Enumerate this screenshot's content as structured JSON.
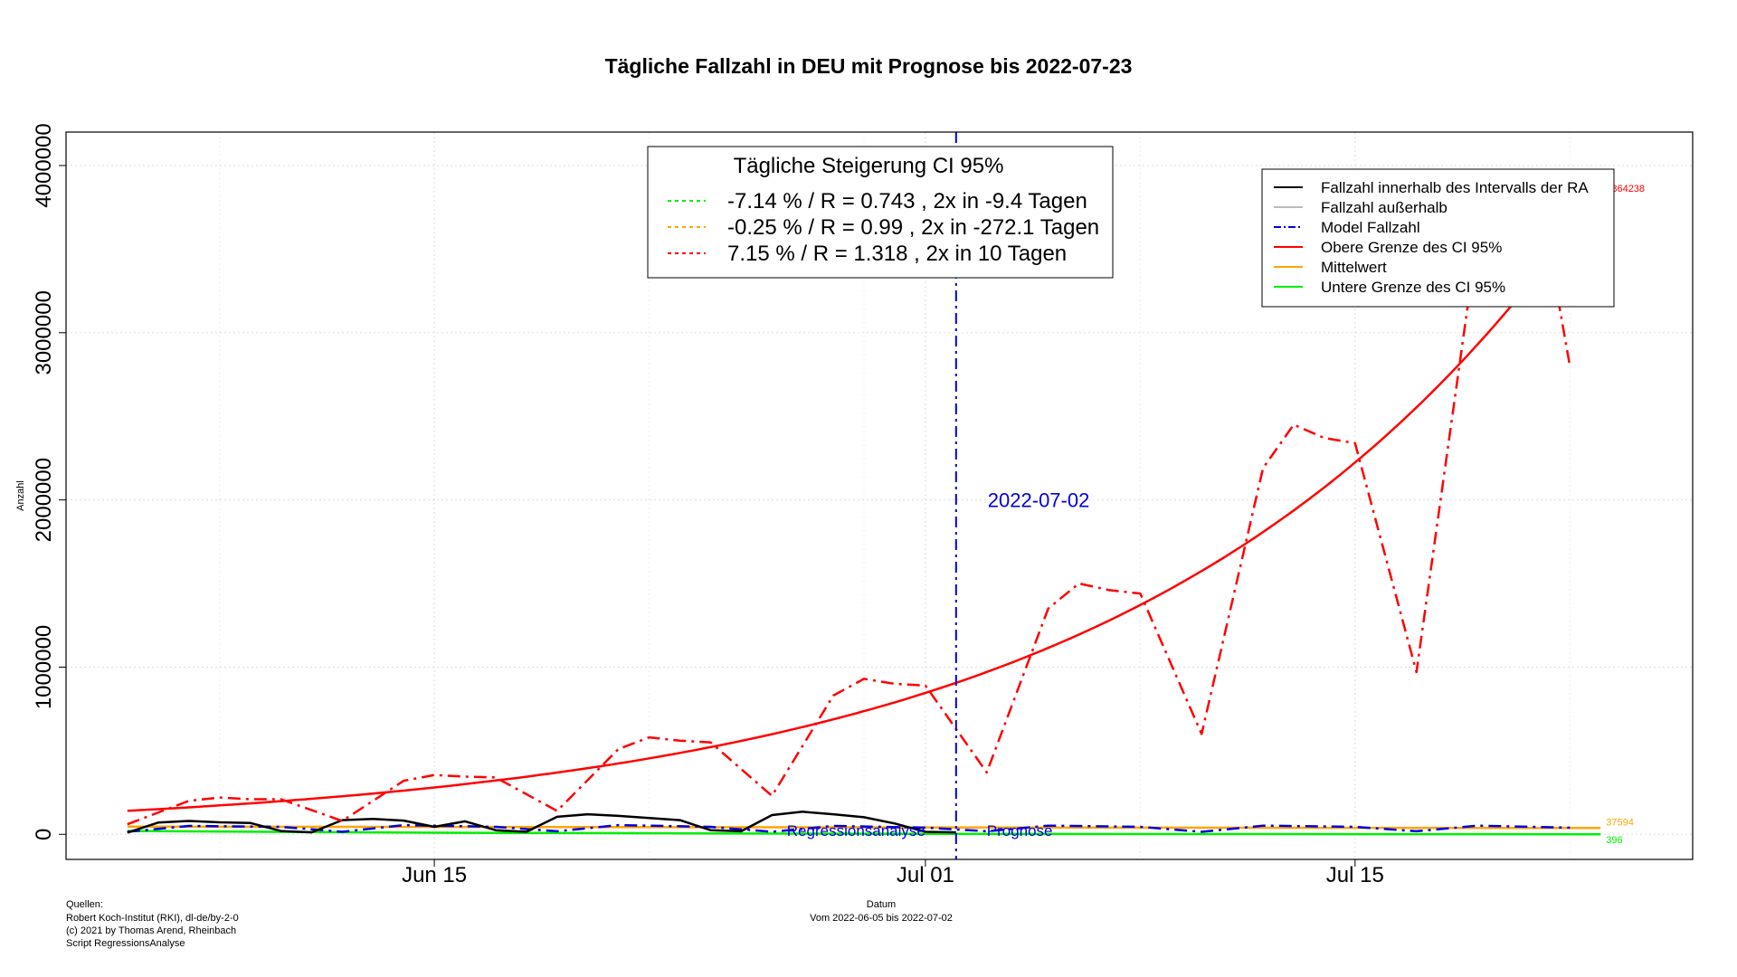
{
  "chart_data": {
    "type": "line",
    "title": "Tägliche Fallzahl in DEU mit Prognose bis 2022-07-23",
    "xlabel": "Datum",
    "xlabel_sub": "Vom 2022-06-05 bis 2022-07-02",
    "ylabel": "Anzahl",
    "ylim": [
      -150000,
      4200000
    ],
    "xlim": [
      "2022-06-03",
      "2022-07-26"
    ],
    "grid": true,
    "y_ticks": [
      0,
      1000000,
      2000000,
      3000000,
      4000000
    ],
    "y_tick_labels": [
      "0",
      "1000000",
      "2000000",
      "3000000",
      "4000000"
    ],
    "x_ticks": [
      {
        "date": "2022-06-15",
        "label": "Jun 15"
      },
      {
        "date": "2022-07-01",
        "label": "Jul 01"
      },
      {
        "date": "2022-07-15",
        "label": "Jul 15"
      }
    ],
    "divider": {
      "date": "2022-07-02",
      "label": "2022-07-02",
      "color": "#0000dd",
      "label_y": 2000000
    },
    "region_labels": [
      {
        "text": "Regressionsanalyse",
        "date": "2022-07-01",
        "anchor": "end",
        "color": "#0000dd"
      },
      {
        "text": "Prognose",
        "date": "2022-07-03",
        "anchor": "start",
        "color": "#0000dd"
      }
    ],
    "ci_box": {
      "title": "Tägliche Steigerung CI  95%",
      "entries": [
        {
          "text": "-7.14 % / R = 0.743 , 2x in -9.4 Tagen",
          "color": "#00ee00"
        },
        {
          "text": "-0.25 % / R = 0.99 , 2x in -272.1 Tagen",
          "color": "#ffa500"
        },
        {
          "text": "7.15 % / R = 1.318 , 2x in 10 Tagen",
          "color": "#ff0000"
        }
      ]
    },
    "legend": {
      "placement": "top-right",
      "entries": [
        {
          "text": "Fallzahl innerhalb des Intervalls der RA",
          "color": "#000000",
          "dash": "solid"
        },
        {
          "text": "Fallzahl außerhalb",
          "color": "#bbbbbb",
          "dash": "solid"
        },
        {
          "text": "Model Fallzahl",
          "color": "#0000dd",
          "dash": "dotdash"
        },
        {
          "text": "Obere Grenze des CI 95%",
          "color": "#ff0000",
          "dash": "solid"
        },
        {
          "text": "Mittelwert",
          "color": "#ffa500",
          "dash": "solid"
        },
        {
          "text": "Untere Grenze des CI 95%",
          "color": "#00ee00",
          "dash": "solid"
        }
      ]
    },
    "end_labels": [
      {
        "text": "3864238",
        "value": 3864238,
        "color": "#ff0000"
      },
      {
        "text": "37594",
        "value": 37594,
        "color": "#ffa500"
      },
      {
        "text": "396",
        "value": 396,
        "color": "#00ee00"
      }
    ],
    "series": [
      {
        "name": "Fallzahl innerhalb des Intervalls der RA",
        "color": "#000000",
        "dash": "solid",
        "width": 2.5,
        "x": [
          "2022-06-05",
          "2022-06-06",
          "2022-06-07",
          "2022-06-08",
          "2022-06-09",
          "2022-06-10",
          "2022-06-11",
          "2022-06-12",
          "2022-06-13",
          "2022-06-14",
          "2022-06-15",
          "2022-06-16",
          "2022-06-17",
          "2022-06-18",
          "2022-06-19",
          "2022-06-20",
          "2022-06-21",
          "2022-06-22",
          "2022-06-23",
          "2022-06-24",
          "2022-06-25",
          "2022-06-26",
          "2022-06-27",
          "2022-06-28",
          "2022-06-29",
          "2022-06-30",
          "2022-07-01",
          "2022-07-02"
        ],
        "y": [
          10000,
          70000,
          80000,
          72000,
          68000,
          20000,
          12000,
          85000,
          92000,
          82000,
          45000,
          78000,
          25000,
          15000,
          105000,
          120000,
          110000,
          98000,
          85000,
          25000,
          18000,
          115000,
          135000,
          120000,
          102000,
          65000,
          15000,
          12000
        ]
      },
      {
        "name": "Model Fallzahl",
        "color": "#0000dd",
        "dash": "dotdash",
        "width": 2.5,
        "x": [
          "2022-06-05",
          "2022-06-07",
          "2022-06-10",
          "2022-06-12",
          "2022-06-14",
          "2022-06-17",
          "2022-06-19",
          "2022-06-21",
          "2022-06-24",
          "2022-06-26",
          "2022-06-28",
          "2022-07-01",
          "2022-07-03",
          "2022-07-05",
          "2022-07-08",
          "2022-07-10",
          "2022-07-12",
          "2022-07-15",
          "2022-07-17",
          "2022-07-19",
          "2022-07-22"
        ],
        "y": [
          15000,
          50000,
          45000,
          15000,
          55000,
          45000,
          18000,
          55000,
          45000,
          15000,
          50000,
          40000,
          18000,
          52000,
          45000,
          15000,
          52000,
          45000,
          18000,
          52000,
          40000
        ]
      },
      {
        "name": "Prognose Fallzahl",
        "color": "#ff0000",
        "dash": "dotdash",
        "width": 2.5,
        "x": [
          "2022-06-05",
          "2022-06-07",
          "2022-06-08",
          "2022-06-09",
          "2022-06-10",
          "2022-06-12",
          "2022-06-14",
          "2022-06-15",
          "2022-06-16",
          "2022-06-17",
          "2022-06-19",
          "2022-06-21",
          "2022-06-22",
          "2022-06-23",
          "2022-06-24",
          "2022-06-26",
          "2022-06-28",
          "2022-06-29",
          "2022-06-30",
          "2022-07-01",
          "2022-07-03",
          "2022-07-05",
          "2022-07-06",
          "2022-07-07",
          "2022-07-08",
          "2022-07-10",
          "2022-07-12",
          "2022-07-13",
          "2022-07-14",
          "2022-07-15",
          "2022-07-17",
          "2022-07-19",
          "2022-07-20",
          "2022-07-21",
          "2022-07-22"
        ],
        "y": [
          60000,
          200000,
          220000,
          210000,
          210000,
          80000,
          320000,
          355000,
          345000,
          340000,
          140000,
          510000,
          580000,
          560000,
          550000,
          230000,
          830000,
          930000,
          900000,
          890000,
          370000,
          1350000,
          1500000,
          1460000,
          1440000,
          600000,
          2190000,
          2450000,
          2370000,
          2340000,
          970000,
          3590000,
          3950000,
          3840000,
          2800000
        ]
      },
      {
        "name": "Obere Grenze des CI 95%",
        "color": "#ff0000",
        "dash": "solid",
        "width": 2.5,
        "growth_pct_per_day": 7.15,
        "x": [
          "2022-06-05",
          "2022-06-10",
          "2022-06-15",
          "2022-06-20",
          "2022-06-25",
          "2022-06-30",
          "2022-07-05",
          "2022-07-10",
          "2022-07-15",
          "2022-07-20",
          "2022-07-23"
        ],
        "y": [
          130000,
          183000,
          258000,
          364000,
          513000,
          722000,
          1017000,
          1433000,
          2019000,
          2845000,
          3864238
        ]
      },
      {
        "name": "Mittelwert",
        "color": "#ffa500",
        "dash": "solid",
        "width": 2.5,
        "x": [
          "2022-06-05",
          "2022-07-23"
        ],
        "y": [
          46000,
          37594
        ]
      },
      {
        "name": "Untere Grenze des CI 95%",
        "color": "#00ee00",
        "dash": "solid",
        "width": 2.5,
        "x": [
          "2022-06-05",
          "2022-06-15",
          "2022-06-25",
          "2022-07-05",
          "2022-07-15",
          "2022-07-23"
        ],
        "y": [
          20000,
          9500,
          4500,
          2200,
          1100,
          396
        ]
      }
    ],
    "footnotes": [
      "Quellen:",
      "Robert Koch-Institut (RKI), dl-de/by-2-0",
      "(c) 2021 by Thomas Arend, Rheinbach",
      "Script RegressionsAnalyse"
    ]
  }
}
